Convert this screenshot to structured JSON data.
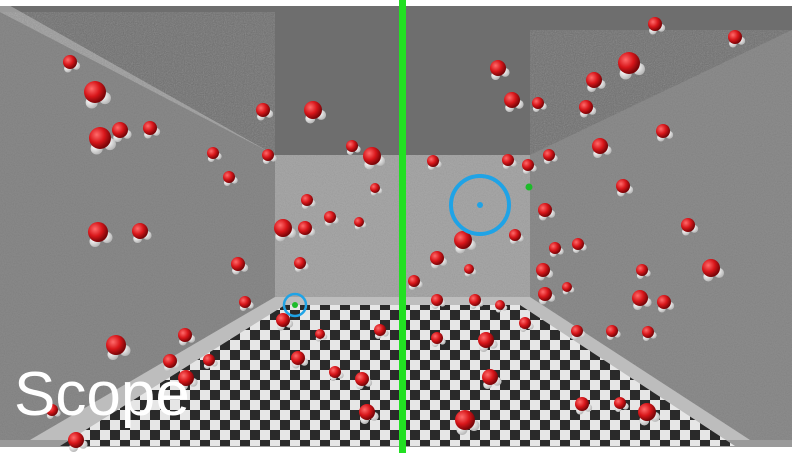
{
  "scene": {
    "label": "Scope",
    "colors": {
      "divider": "#22e022",
      "cursor_ring": "#1fa3e6",
      "molecule_oxygen": "#d8161a",
      "molecule_hydrogen": "#f2f2f2",
      "marker_green": "#1dbb2a"
    }
  }
}
